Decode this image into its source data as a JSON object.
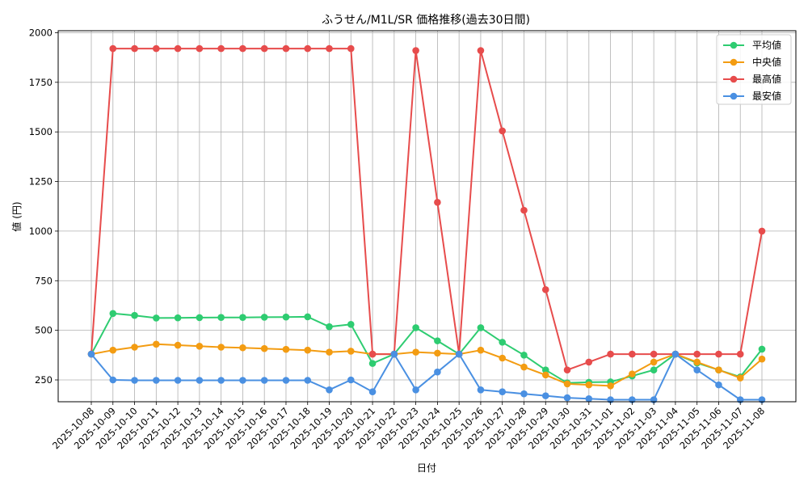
{
  "chart_data": {
    "type": "line",
    "title": "ふうせん/M1L/SR 価格推移(過去30日間)",
    "xlabel": "日付",
    "ylabel": "値 (円)",
    "ylim": [
      140,
      2010
    ],
    "yticks": [
      250,
      500,
      750,
      1000,
      1250,
      1500,
      1750,
      2000
    ],
    "grid": true,
    "legend_position": "top-right",
    "categories": [
      "2025-10-08",
      "2025-10-09",
      "2025-10-10",
      "2025-10-11",
      "2025-10-12",
      "2025-10-13",
      "2025-10-14",
      "2025-10-15",
      "2025-10-16",
      "2025-10-17",
      "2025-10-18",
      "2025-10-19",
      "2025-10-20",
      "2025-10-21",
      "2025-10-22",
      "2025-10-23",
      "2025-10-24",
      "2025-10-25",
      "2025-10-26",
      "2025-10-27",
      "2025-10-28",
      "2025-10-29",
      "2025-10-30",
      "2025-10-31",
      "2025-11-01",
      "2025-11-02",
      "2025-11-03",
      "2025-11-04",
      "2025-11-05",
      "2025-11-06",
      "2025-11-07",
      "2025-11-08"
    ],
    "series": [
      {
        "name": "平均値",
        "color": "#2ecc71",
        "values": [
          380,
          585,
          575,
          562,
          563,
          564,
          565,
          565,
          566,
          567,
          568,
          518,
          530,
          333,
          380,
          513,
          447,
          380,
          513,
          440,
          375,
          300,
          235,
          238,
          240,
          270,
          300,
          380,
          335,
          300,
          265,
          405
        ]
      },
      {
        "name": "中央値",
        "color": "#f39c12",
        "values": [
          380,
          400,
          415,
          430,
          425,
          420,
          415,
          412,
          408,
          404,
          400,
          390,
          395,
          380,
          380,
          390,
          385,
          380,
          400,
          360,
          315,
          275,
          230,
          225,
          220,
          280,
          340,
          380,
          340,
          300,
          260,
          355
        ]
      },
      {
        "name": "最高値",
        "color": "#e74c4c",
        "values": [
          380,
          1920,
          1920,
          1920,
          1920,
          1920,
          1920,
          1920,
          1920,
          1920,
          1920,
          1920,
          1920,
          380,
          380,
          1910,
          1145,
          380,
          1910,
          1505,
          1105,
          705,
          300,
          340,
          380,
          380,
          380,
          380,
          380,
          380,
          380,
          1000
        ]
      },
      {
        "name": "最安値",
        "color": "#4a90e2",
        "values": [
          380,
          250,
          248,
          248,
          248,
          248,
          248,
          248,
          248,
          248,
          248,
          200,
          250,
          190,
          380,
          200,
          290,
          380,
          200,
          190,
          180,
          170,
          160,
          155,
          150,
          150,
          150,
          380,
          300,
          225,
          150,
          150
        ]
      }
    ]
  }
}
